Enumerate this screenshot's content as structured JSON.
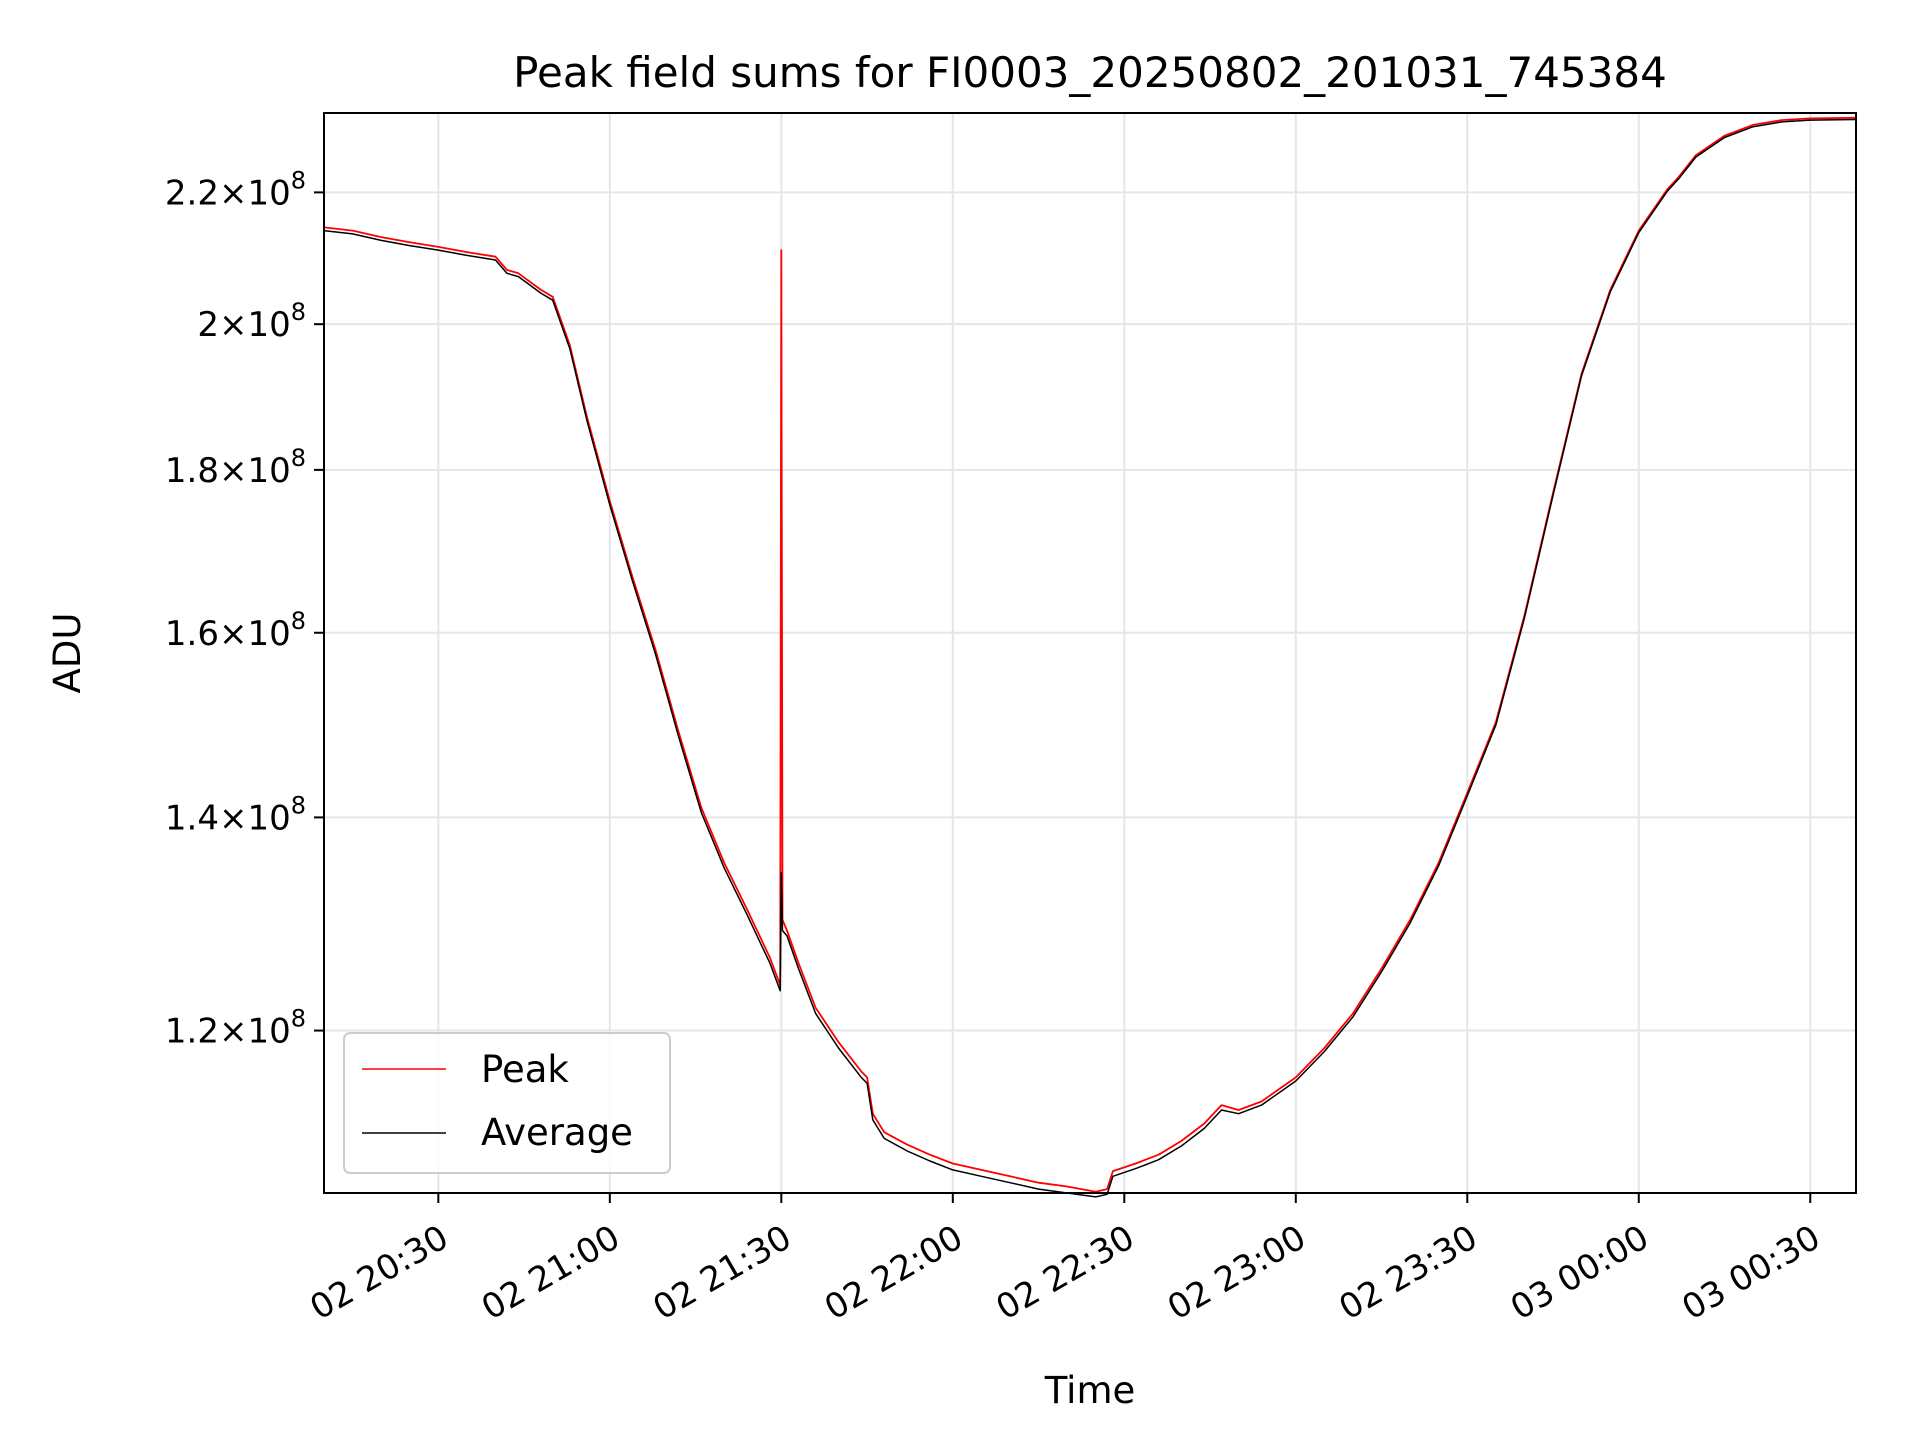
{
  "chart_data": {
    "type": "line",
    "title": "Peak field sums for FI0003_20250802_201031_745384",
    "xlabel": "Time",
    "ylabel": "ADU",
    "yscale": "log",
    "grid": true,
    "legend_position": "lower-left",
    "xlim": [
      "2025-08-02 20:10",
      "2025-08-03 00:38"
    ],
    "ylim": [
      106700000.0,
      233000000.0
    ],
    "x_ticks": [
      {
        "value": "2025-08-02 20:30",
        "label": "02 20:30"
      },
      {
        "value": "2025-08-02 21:00",
        "label": "02 21:00"
      },
      {
        "value": "2025-08-02 21:30",
        "label": "02 21:30"
      },
      {
        "value": "2025-08-02 22:00",
        "label": "02 22:00"
      },
      {
        "value": "2025-08-02 22:30",
        "label": "02 22:30"
      },
      {
        "value": "2025-08-02 23:00",
        "label": "02 23:00"
      },
      {
        "value": "2025-08-02 23:30",
        "label": "02 23:30"
      },
      {
        "value": "2025-08-03 00:00",
        "label": "03 00:00"
      },
      {
        "value": "2025-08-03 00:30",
        "label": "03 00:30"
      }
    ],
    "y_ticks": [
      {
        "value": 120000000.0,
        "mantissa": "1.2",
        "base": "10",
        "exp": "8"
      },
      {
        "value": 140000000.0,
        "mantissa": "1.4",
        "base": "10",
        "exp": "8"
      },
      {
        "value": 160000000.0,
        "mantissa": "1.6",
        "base": "10",
        "exp": "8"
      },
      {
        "value": 180000000.0,
        "mantissa": "1.8",
        "base": "10",
        "exp": "8"
      },
      {
        "value": 200000000.0,
        "mantissa": "2",
        "base": "10",
        "exp": "8"
      },
      {
        "value": 220000000.0,
        "mantissa": "2.2",
        "base": "10",
        "exp": "8"
      }
    ],
    "series": [
      {
        "name": "Peak",
        "color": "#ff0000",
        "x": [
          "2025-08-02 20:10",
          "2025-08-02 20:15",
          "2025-08-02 20:20",
          "2025-08-02 20:25",
          "2025-08-02 20:30",
          "2025-08-02 20:35",
          "2025-08-02 20:40",
          "2025-08-02 20:42",
          "2025-08-02 20:44",
          "2025-08-02 20:48",
          "2025-08-02 20:50",
          "2025-08-02 20:53",
          "2025-08-02 20:56",
          "2025-08-02 21:00",
          "2025-08-02 21:04",
          "2025-08-02 21:08",
          "2025-08-02 21:12",
          "2025-08-02 21:16",
          "2025-08-02 21:20",
          "2025-08-02 21:24",
          "2025-08-02 21:28",
          "2025-08-02 21:29.8",
          "2025-08-02 21:30",
          "2025-08-02 21:30.2",
          "2025-08-02 21:31",
          "2025-08-02 21:33",
          "2025-08-02 21:36",
          "2025-08-02 21:40",
          "2025-08-02 21:44",
          "2025-08-02 21:45",
          "2025-08-02 21:46",
          "2025-08-02 21:48",
          "2025-08-02 21:52",
          "2025-08-02 21:56",
          "2025-08-02 22:00",
          "2025-08-02 22:05",
          "2025-08-02 22:10",
          "2025-08-02 22:15",
          "2025-08-02 22:20",
          "2025-08-02 22:25",
          "2025-08-02 22:27",
          "2025-08-02 22:28",
          "2025-08-02 22:32",
          "2025-08-02 22:36",
          "2025-08-02 22:40",
          "2025-08-02 22:44",
          "2025-08-02 22:47",
          "2025-08-02 22:50",
          "2025-08-02 22:54",
          "2025-08-02 23:00",
          "2025-08-02 23:05",
          "2025-08-02 23:10",
          "2025-08-02 23:15",
          "2025-08-02 23:20",
          "2025-08-02 23:25",
          "2025-08-02 23:30",
          "2025-08-02 23:35",
          "2025-08-02 23:40",
          "2025-08-02 23:45",
          "2025-08-02 23:50",
          "2025-08-02 23:55",
          "2025-08-03 00:00",
          "2025-08-03 00:05",
          "2025-08-03 00:07",
          "2025-08-03 00:10",
          "2025-08-03 00:15",
          "2025-08-03 00:20",
          "2025-08-03 00:25",
          "2025-08-03 00:30",
          "2025-08-03 00:38"
        ],
        "y": [
          214500000.0,
          214000000.0,
          213000000.0,
          212200000.0,
          211500000.0,
          210700000.0,
          210000000.0,
          208000000.0,
          207500000.0,
          205000000.0,
          204000000.0,
          197000000.0,
          187000000.0,
          176000000.0,
          166500000.0,
          158000000.0,
          149000000.0,
          141000000.0,
          135500000.0,
          131000000.0,
          126500000.0,
          124000000.0,
          211000000.0,
          130000000.0,
          129000000.0,
          126000000.0,
          122000000.0,
          119000000.0,
          116500000.0,
          116000000.0,
          113000000.0,
          111500000.0,
          110500000.0,
          109700000.0,
          109000000.0,
          108500000.0,
          108000000.0,
          107500000.0,
          107200000.0,
          106800000.0,
          107000000.0,
          108400000.0,
          109000000.0,
          109700000.0,
          110800000.0,
          112200000.0,
          113700000.0,
          113300000.0,
          114000000.0,
          116000000.0,
          118500000.0,
          121500000.0,
          125500000.0,
          130000000.0,
          135500000.0,
          142500000.0,
          150000000.0,
          162000000.0,
          177000000.0,
          193000000.0,
          205000000.0,
          214000000.0,
          220500000.0,
          222500000.0,
          226000000.0,
          229200000.0,
          231000000.0,
          231800000.0,
          232100000.0,
          232200000.0
        ]
      },
      {
        "name": "Average",
        "color": "#000000",
        "x": [
          "2025-08-02 20:10",
          "2025-08-02 20:15",
          "2025-08-02 20:20",
          "2025-08-02 20:25",
          "2025-08-02 20:30",
          "2025-08-02 20:35",
          "2025-08-02 20:40",
          "2025-08-02 20:42",
          "2025-08-02 20:44",
          "2025-08-02 20:48",
          "2025-08-02 20:50",
          "2025-08-02 20:53",
          "2025-08-02 20:56",
          "2025-08-02 21:00",
          "2025-08-02 21:04",
          "2025-08-02 21:08",
          "2025-08-02 21:12",
          "2025-08-02 21:16",
          "2025-08-02 21:20",
          "2025-08-02 21:24",
          "2025-08-02 21:28",
          "2025-08-02 21:29.8",
          "2025-08-02 21:30",
          "2025-08-02 21:30.2",
          "2025-08-02 21:31",
          "2025-08-02 21:33",
          "2025-08-02 21:36",
          "2025-08-02 21:40",
          "2025-08-02 21:44",
          "2025-08-02 21:45",
          "2025-08-02 21:46",
          "2025-08-02 21:48",
          "2025-08-02 21:52",
          "2025-08-02 21:56",
          "2025-08-02 22:00",
          "2025-08-02 22:05",
          "2025-08-02 22:10",
          "2025-08-02 22:15",
          "2025-08-02 22:20",
          "2025-08-02 22:25",
          "2025-08-02 22:27",
          "2025-08-02 22:28",
          "2025-08-02 22:32",
          "2025-08-02 22:36",
          "2025-08-02 22:40",
          "2025-08-02 22:44",
          "2025-08-02 22:47",
          "2025-08-02 22:50",
          "2025-08-02 22:54",
          "2025-08-02 23:00",
          "2025-08-02 23:05",
          "2025-08-02 23:10",
          "2025-08-02 23:15",
          "2025-08-02 23:20",
          "2025-08-02 23:25",
          "2025-08-02 23:30",
          "2025-08-02 23:35",
          "2025-08-02 23:40",
          "2025-08-02 23:45",
          "2025-08-02 23:50",
          "2025-08-02 23:55",
          "2025-08-03 00:00",
          "2025-08-03 00:05",
          "2025-08-03 00:07",
          "2025-08-03 00:10",
          "2025-08-03 00:15",
          "2025-08-03 00:20",
          "2025-08-03 00:25",
          "2025-08-03 00:30",
          "2025-08-03 00:38"
        ],
        "y": [
          214000000.0,
          213500000.0,
          212500000.0,
          211700000.0,
          211000000.0,
          210200000.0,
          209500000.0,
          207500000.0,
          207000000.0,
          204500000.0,
          203500000.0,
          196500000.0,
          186500000.0,
          175500000.0,
          166000000.0,
          157500000.0,
          148500000.0,
          140500000.0,
          135000000.0,
          130500000.0,
          126000000.0,
          123500000.0,
          134500000.0,
          129000000.0,
          128500000.0,
          125500000.0,
          121500000.0,
          118500000.0,
          116000000.0,
          115500000.0,
          112500000.0,
          111000000.0,
          110000000.0,
          109200000.0,
          108500000.0,
          108000000.0,
          107500000.0,
          107000000.0,
          106700000.0,
          106400000.0,
          106600000.0,
          108000000.0,
          108600000.0,
          109300000.0,
          110400000.0,
          111800000.0,
          113300000.0,
          113000000.0,
          113700000.0,
          115700000.0,
          118200000.0,
          121200000.0,
          125200000.0,
          129700000.0,
          135200000.0,
          142200000.0,
          149700000.0,
          161700000.0,
          176700000.0,
          192700000.0,
          204700000.0,
          213700000.0,
          220200000.0,
          222200000.0,
          225700000.0,
          228900000.0,
          230700000.0,
          231500000.0,
          231800000.0,
          231900000.0
        ]
      }
    ]
  }
}
